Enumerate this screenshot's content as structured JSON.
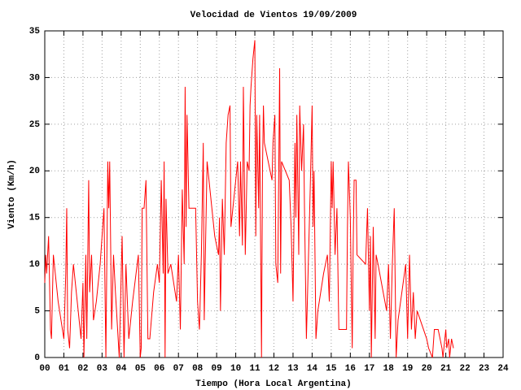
{
  "chart_data": {
    "type": "line",
    "title": "Velocidad de Vientos 19/09/2009",
    "x_label": "Tiempo (Hora Local Argentina)",
    "y_label": "Viento (Km/h)",
    "xlim": [
      0,
      24
    ],
    "ylim": [
      0,
      35
    ],
    "grid": true,
    "xticks": [
      {
        "value": 0,
        "label": "00"
      },
      {
        "value": 1,
        "label": "01"
      },
      {
        "value": 2,
        "label": "02"
      },
      {
        "value": 3,
        "label": "03"
      },
      {
        "value": 4,
        "label": "04"
      },
      {
        "value": 5,
        "label": "05"
      },
      {
        "value": 6,
        "label": "06"
      },
      {
        "value": 7,
        "label": "07"
      },
      {
        "value": 8,
        "label": "08"
      },
      {
        "value": 9,
        "label": "09"
      },
      10,
      11,
      12,
      13,
      14,
      15,
      16,
      17,
      18,
      19,
      20,
      21,
      22,
      23,
      24
    ],
    "yticks": [
      0,
      5,
      10,
      15,
      20,
      25,
      30,
      35
    ],
    "x": [
      0,
      0.05,
      0.1,
      0.2,
      0.3,
      0.35,
      0.45,
      0.55,
      0.7,
      1,
      1.1,
      1.15,
      1.2,
      1.3,
      1.4,
      1.5,
      1.7,
      1.9,
      2,
      2.05,
      2.15,
      2.2,
      2.3,
      2.35,
      2.45,
      2.55,
      2.7,
      2.9,
      3.1,
      3.2,
      3.3,
      3.35,
      3.4,
      3.5,
      3.6,
      3.7,
      3.9,
      4.05,
      4.15,
      4.25,
      4.4,
      4.6,
      4.9,
      5,
      5.05,
      5.1,
      5.2,
      5.3,
      5.4,
      5.5,
      5.7,
      5.9,
      6,
      6.1,
      6.2,
      6.25,
      6.3,
      6.35,
      6.45,
      6.6,
      6.9,
      7,
      7.1,
      7.2,
      7.3,
      7.35,
      7.4,
      7.45,
      7.55,
      7.9,
      8,
      8.1,
      8.2,
      8.3,
      8.35,
      8.4,
      8.5,
      8.6,
      8.9,
      9.1,
      9.15,
      9.2,
      9.3,
      9.4,
      9.5,
      9.6,
      9.7,
      9.75,
      9.9,
      10,
      10.1,
      10.2,
      10.25,
      10.35,
      10.4,
      10.5,
      10.6,
      10.7,
      10.75,
      10.8,
      10.9,
      11,
      11.05,
      11.1,
      11.2,
      11.25,
      11.35,
      11.4,
      11.45,
      11.5,
      11.9,
      11.95,
      12.05,
      12.1,
      12.2,
      12.3,
      12.35,
      12.4,
      12.8,
      12.9,
      13,
      13.1,
      13.15,
      13.2,
      13.3,
      13.35,
      13.45,
      13.55,
      13.6,
      13.7,
      13.8,
      13.9,
      14,
      14.05,
      14.1,
      14.2,
      14.3,
      14.6,
      14.8,
      14.9,
      15,
      15.05,
      15.1,
      15.2,
      15.3,
      15.4,
      15.8,
      15.85,
      15.9,
      16,
      16.1,
      16.15,
      16.2,
      16.3,
      16.35,
      16.8,
      16.9,
      17,
      17.05,
      17.1,
      17.2,
      17.3,
      17.35,
      17.45,
      17.9,
      18,
      18.1,
      18.2,
      18.3,
      18.4,
      18.5,
      18.9,
      19,
      19.1,
      19.2,
      19.3,
      19.4,
      19.5,
      20,
      20.1,
      20.3,
      20.4,
      20.6,
      20.8,
      20.85,
      21,
      21.05,
      21.15,
      21.2,
      21.3,
      21.4
    ],
    "series": [
      {
        "name": "Viento",
        "color": "#ff0000",
        "values": [
          8,
          11,
          9,
          13,
          3,
          2,
          11,
          9,
          6,
          2,
          9,
          16,
          3,
          1,
          7,
          10,
          6,
          2,
          8,
          0,
          11,
          2,
          19,
          7,
          11,
          4,
          6,
          10,
          16,
          0,
          21,
          16,
          21,
          3,
          11,
          7,
          0,
          13,
          0,
          10,
          2,
          6,
          11,
          0,
          1,
          16,
          16,
          19,
          2,
          2,
          7,
          10,
          8,
          19,
          9,
          21,
          0,
          17,
          9,
          10,
          6,
          11,
          3,
          18,
          10,
          29,
          14,
          26,
          16,
          16,
          6,
          3,
          11,
          23,
          4,
          10,
          21,
          19,
          13,
          11,
          15,
          5,
          17,
          11,
          23,
          26,
          27,
          14,
          17,
          19,
          21,
          13,
          21,
          12,
          29,
          11,
          21,
          20,
          27,
          29,
          32,
          34,
          13,
          26,
          16,
          26,
          0,
          20,
          27,
          23,
          19,
          23,
          26,
          10,
          8,
          31,
          9,
          21,
          19,
          14,
          6,
          23,
          15,
          26,
          11,
          27,
          20,
          25,
          16,
          2,
          10,
          18,
          27,
          14,
          20,
          2,
          5,
          9,
          11,
          6,
          21,
          16,
          21,
          11,
          16,
          3,
          3,
          14,
          21,
          15,
          1,
          12,
          19,
          19,
          11,
          10,
          16,
          5,
          13,
          0,
          14,
          2,
          11,
          10,
          5,
          10,
          2,
          10,
          16,
          0,
          4,
          10,
          2,
          11,
          3,
          7,
          2,
          5,
          2,
          1,
          0,
          3,
          3,
          1,
          0,
          3,
          1,
          2,
          0,
          2,
          1
        ]
      }
    ]
  }
}
